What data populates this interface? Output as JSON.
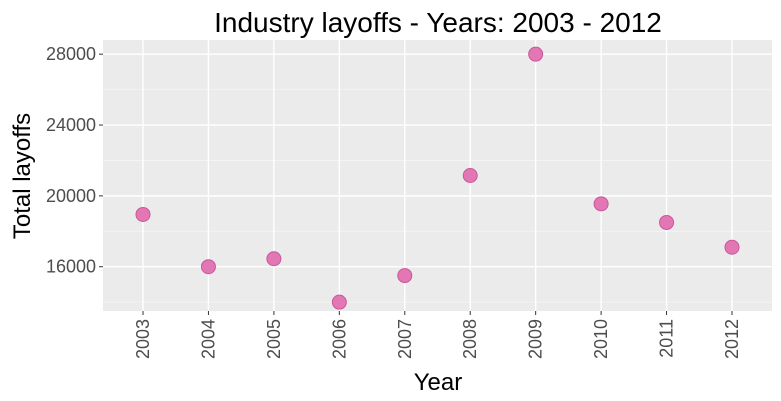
{
  "chart_data": {
    "type": "scatter",
    "title": "Industry layoffs - Years: 2003 - 2012",
    "xlabel": "Year",
    "ylabel": "Total layoffs",
    "x": [
      "2003",
      "2004",
      "2005",
      "2006",
      "2007",
      "2008",
      "2009",
      "2010",
      "2011",
      "2012"
    ],
    "y": [
      18950,
      16000,
      16450,
      14000,
      15500,
      21150,
      28000,
      19550,
      18500,
      17100
    ],
    "y_ticks": [
      16000,
      20000,
      24000,
      28000
    ],
    "ylim": [
      13500,
      28800
    ],
    "grid": true,
    "legend": "none",
    "colors": {
      "panel": "#ebebeb",
      "grid_major": "#ffffff",
      "grid_minor": "#f5f5f5",
      "point_fill": "#e377b4",
      "point_stroke": "#c8579a",
      "tick": "#333333"
    }
  }
}
